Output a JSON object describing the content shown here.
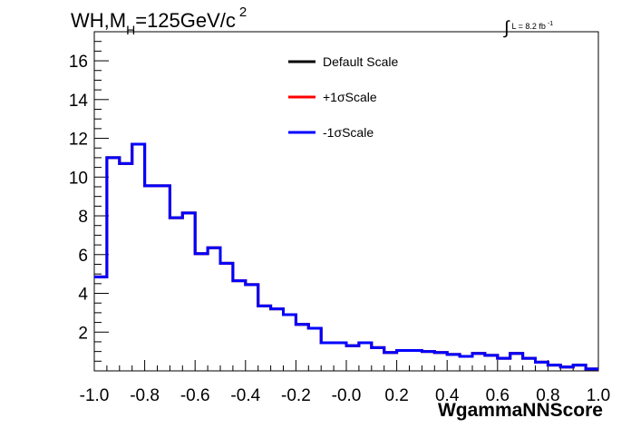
{
  "chart_data": {
    "type": "histogram",
    "title": {
      "main": "WH,M",
      "subscript": "H",
      "rest": "=125GeV/c",
      "superscript": "2"
    },
    "luminosity": {
      "integral_symbol": "∫",
      "text": "L = 8.2 fb",
      "superscript": "-1"
    },
    "xlabel": "WgammaNNScore",
    "ylabel": "",
    "xlim": [
      -1.0,
      1.0
    ],
    "ylim": [
      0,
      17.5
    ],
    "x_ticks": [
      "-1.0",
      "-0.8",
      "-0.6",
      "-0.4",
      "-0.2",
      "-0.0",
      "0.2",
      "0.4",
      "0.6",
      "0.8",
      "1.0"
    ],
    "y_ticks": [
      "2",
      "4",
      "6",
      "8",
      "10",
      "12",
      "14",
      "16"
    ],
    "bin_edges": [
      -1.0,
      -0.95,
      -0.9,
      -0.85,
      -0.8,
      -0.75,
      -0.7,
      -0.65,
      -0.6,
      -0.55,
      -0.5,
      -0.45,
      -0.4,
      -0.35,
      -0.3,
      -0.25,
      -0.2,
      -0.15,
      -0.1,
      -0.05,
      0.0,
      0.05,
      0.1,
      0.15,
      0.2,
      0.25,
      0.3,
      0.35,
      0.4,
      0.45,
      0.5,
      0.55,
      0.6,
      0.65,
      0.7,
      0.75,
      0.8,
      0.85,
      0.9,
      0.95,
      1.0
    ],
    "series": [
      {
        "name": "Default Scale",
        "color": "#000000",
        "values": [
          4.85,
          11.0,
          10.7,
          11.7,
          9.55,
          9.55,
          7.9,
          8.15,
          6.05,
          6.35,
          5.55,
          4.65,
          4.45,
          3.35,
          3.2,
          2.9,
          2.4,
          2.2,
          1.45,
          1.45,
          1.3,
          1.45,
          1.2,
          0.95,
          1.05,
          1.05,
          1.0,
          0.95,
          0.85,
          0.75,
          0.9,
          0.8,
          0.65,
          0.9,
          0.65,
          0.45,
          0.3,
          0.2,
          0.3,
          0.1
        ]
      },
      {
        "name": "+1σScale",
        "color": "#ff0000",
        "values": [
          4.85,
          11.0,
          10.7,
          11.7,
          9.55,
          9.55,
          7.9,
          8.15,
          6.05,
          6.35,
          5.55,
          4.65,
          4.45,
          3.35,
          3.2,
          2.9,
          2.4,
          2.2,
          1.45,
          1.45,
          1.3,
          1.45,
          1.2,
          0.95,
          1.05,
          1.05,
          1.0,
          0.95,
          0.85,
          0.75,
          0.9,
          0.8,
          0.65,
          0.9,
          0.65,
          0.45,
          0.3,
          0.2,
          0.3,
          0.1
        ]
      },
      {
        "name": "-1σScale",
        "color": "#0000ff",
        "values": [
          4.85,
          11.0,
          10.7,
          11.7,
          9.55,
          9.55,
          7.9,
          8.15,
          6.05,
          6.35,
          5.55,
          4.65,
          4.45,
          3.35,
          3.2,
          2.9,
          2.4,
          2.2,
          1.45,
          1.45,
          1.3,
          1.45,
          1.2,
          0.95,
          1.05,
          1.05,
          1.0,
          0.95,
          0.85,
          0.75,
          0.9,
          0.8,
          0.65,
          0.9,
          0.65,
          0.45,
          0.3,
          0.2,
          0.3,
          0.1
        ]
      }
    ],
    "legend": {
      "position": "top-center",
      "entries": [
        "Default Scale",
        "+1σScale",
        "-1σScale"
      ]
    },
    "grid": false
  }
}
